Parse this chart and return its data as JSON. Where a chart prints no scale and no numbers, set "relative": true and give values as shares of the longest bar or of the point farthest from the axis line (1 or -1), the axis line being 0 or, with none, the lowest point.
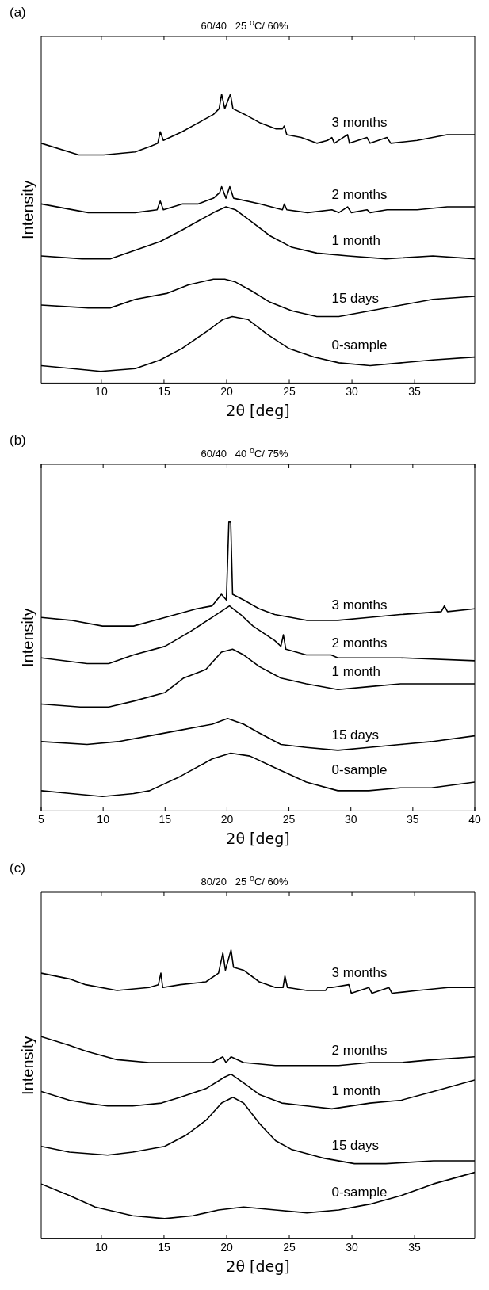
{
  "chart_data": [
    {
      "type": "line",
      "title": "60/40   25 $^{o}$C/ 60%",
      "xlabel": "2θ [deg]",
      "ylabel": "Intensity",
      "annotations": [
        "(a)"
      ],
      "relative": true,
      "legend": false,
      "xlim": [
        5.2,
        39.8
      ],
      "xticks": [
        10,
        15,
        20,
        25,
        30,
        35
      ],
      "series": [
        {
          "name": "3 months",
          "color": "#000000",
          "x": [
            5.2,
            8.2,
            10.2,
            12.7,
            13.95,
            14.5,
            14.7,
            14.95,
            16.45,
            17.7,
            18.95,
            19.4,
            19.6,
            19.85,
            20.3,
            20.5,
            21.45,
            22.7,
            23.95,
            24.45,
            24.6,
            24.8,
            25.95,
            27.2,
            28.05,
            28.4,
            28.6,
            29.65,
            29.8,
            31.2,
            31.45,
            32.8,
            33.1,
            35.2,
            37.6,
            39.8
          ],
          "values": [
            0.83,
            0.79,
            0.79,
            0.8,
            0.82,
            0.83,
            0.87,
            0.84,
            0.87,
            0.9,
            0.93,
            0.95,
            1.0,
            0.95,
            1.0,
            0.95,
            0.93,
            0.9,
            0.88,
            0.88,
            0.89,
            0.86,
            0.85,
            0.83,
            0.84,
            0.85,
            0.83,
            0.86,
            0.83,
            0.85,
            0.83,
            0.85,
            0.83,
            0.84,
            0.86,
            0.86
          ]
        },
        {
          "name": "2 months",
          "color": "#000000",
          "x": [
            5.2,
            8.95,
            12.7,
            14.45,
            14.7,
            14.95,
            16.45,
            17.7,
            18.95,
            19.45,
            19.6,
            19.95,
            20.25,
            20.55,
            22.7,
            24.45,
            24.6,
            24.8,
            26.45,
            28.4,
            28.95,
            29.65,
            29.95,
            31.2,
            31.45,
            32.8,
            35.2,
            37.6,
            39.8
          ],
          "values": [
            0.62,
            0.59,
            0.59,
            0.6,
            0.63,
            0.6,
            0.62,
            0.62,
            0.64,
            0.66,
            0.68,
            0.64,
            0.68,
            0.64,
            0.62,
            0.6,
            0.62,
            0.6,
            0.59,
            0.6,
            0.59,
            0.61,
            0.59,
            0.6,
            0.59,
            0.6,
            0.6,
            0.61,
            0.61
          ]
        },
        {
          "name": "1 month",
          "color": "#000000",
          "x": [
            5.2,
            8.45,
            10.7,
            12.7,
            14.7,
            16.45,
            17.7,
            18.95,
            19.95,
            20.7,
            21.95,
            23.45,
            25.2,
            27.2,
            29.7,
            32.7,
            36.45,
            39.8
          ],
          "values": [
            0.44,
            0.43,
            0.43,
            0.46,
            0.49,
            0.53,
            0.56,
            0.59,
            0.61,
            0.6,
            0.56,
            0.51,
            0.47,
            0.45,
            0.44,
            0.43,
            0.44,
            0.43
          ]
        },
        {
          "name": "15 days",
          "color": "#000000",
          "x": [
            5.2,
            8.95,
            10.7,
            12.7,
            15.2,
            16.95,
            18.95,
            19.85,
            20.7,
            21.95,
            23.45,
            25.2,
            27.2,
            28.95,
            31.45,
            33.95,
            36.45,
            39.8
          ],
          "values": [
            0.27,
            0.26,
            0.26,
            0.29,
            0.31,
            0.34,
            0.36,
            0.36,
            0.35,
            0.32,
            0.28,
            0.25,
            0.23,
            0.23,
            0.25,
            0.27,
            0.29,
            0.3
          ]
        },
        {
          "name": "0-sample",
          "color": "#000000",
          "x": [
            5.2,
            7.7,
            9.95,
            12.7,
            14.7,
            16.45,
            18.45,
            19.7,
            20.45,
            21.7,
            23.2,
            24.95,
            26.95,
            28.95,
            31.45,
            33.95,
            36.45,
            39.8
          ],
          "values": [
            0.06,
            0.05,
            0.04,
            0.05,
            0.08,
            0.12,
            0.18,
            0.22,
            0.23,
            0.22,
            0.17,
            0.12,
            0.09,
            0.07,
            0.06,
            0.07,
            0.08,
            0.09
          ]
        }
      ]
    },
    {
      "type": "line",
      "title": "60/40   40 $^{o}$C/ 75%",
      "xlabel": "2θ [deg]",
      "ylabel": "Intensity",
      "annotations": [
        "(b)"
      ],
      "relative": true,
      "legend": false,
      "xlim": [
        5,
        40
      ],
      "xticks": [
        5,
        10,
        15,
        20,
        25,
        30,
        35,
        40
      ],
      "series": [
        {
          "name": "3 months",
          "color": "#000000",
          "x": [
            5,
            7.4,
            9.95,
            12.45,
            15,
            17.55,
            18.8,
            19.55,
            19.95,
            20.15,
            20.3,
            20.45,
            21.35,
            22.6,
            23.85,
            26.4,
            28.95,
            31.45,
            34,
            37.3,
            37.55,
            37.8,
            40
          ],
          "values": [
            0.67,
            0.66,
            0.64,
            0.64,
            0.67,
            0.7,
            0.71,
            0.75,
            0.73,
            1.0,
            1.0,
            0.75,
            0.73,
            0.7,
            0.68,
            0.66,
            0.66,
            0.67,
            0.68,
            0.69,
            0.71,
            0.69,
            0.7
          ]
        },
        {
          "name": "2 months",
          "color": "#000000",
          "x": [
            5,
            8.7,
            10.45,
            12.45,
            15,
            17,
            18.8,
            20.2,
            21.1,
            22.1,
            23.85,
            24.35,
            24.55,
            24.75,
            26.4,
            28.4,
            28.95,
            34,
            40
          ],
          "values": [
            0.53,
            0.51,
            0.51,
            0.54,
            0.57,
            0.62,
            0.67,
            0.71,
            0.68,
            0.64,
            0.59,
            0.57,
            0.61,
            0.56,
            0.54,
            0.54,
            0.53,
            0.53,
            0.52
          ]
        },
        {
          "name": "1 month",
          "color": "#000000",
          "x": [
            5,
            8.15,
            10.45,
            12.45,
            15,
            16.5,
            18.3,
            19.55,
            20.45,
            21.35,
            22.6,
            24.35,
            26.4,
            28.95,
            31.45,
            34,
            40
          ],
          "values": [
            0.37,
            0.36,
            0.36,
            0.38,
            0.41,
            0.46,
            0.49,
            0.55,
            0.56,
            0.54,
            0.5,
            0.46,
            0.44,
            0.42,
            0.43,
            0.44,
            0.44
          ]
        },
        {
          "name": "15 days",
          "color": "#000000",
          "x": [
            5,
            8.7,
            11.2,
            13.75,
            16.25,
            17.5,
            18.8,
            20.05,
            21.35,
            22.6,
            24.35,
            26.4,
            28.95,
            31.45,
            34,
            36.5,
            40
          ],
          "values": [
            0.24,
            0.23,
            0.24,
            0.26,
            0.28,
            0.29,
            0.3,
            0.32,
            0.3,
            0.27,
            0.23,
            0.22,
            0.21,
            0.22,
            0.23,
            0.24,
            0.26
          ]
        },
        {
          "name": "0-sample",
          "color": "#000000",
          "x": [
            5,
            7.4,
            9.95,
            12.45,
            13.75,
            16.25,
            18.8,
            20.3,
            21.85,
            23.85,
            26.4,
            28.95,
            31.45,
            34,
            36.5,
            40
          ],
          "values": [
            0.07,
            0.06,
            0.05,
            0.06,
            0.07,
            0.12,
            0.18,
            0.2,
            0.19,
            0.15,
            0.1,
            0.07,
            0.07,
            0.08,
            0.08,
            0.1
          ]
        }
      ]
    },
    {
      "type": "line",
      "title": "80/20   25 $^{o}$C/ 60%",
      "xlabel": "2θ [deg]",
      "ylabel": "Intensity",
      "annotations": [
        "(c)"
      ],
      "relative": true,
      "legend": false,
      "xlim": [
        5.2,
        39.8
      ],
      "xticks": [
        10,
        15,
        20,
        25,
        30,
        35
      ],
      "series": [
        {
          "name": "3 months",
          "color": "#000000",
          "x": [
            5.2,
            7.45,
            8.75,
            11.25,
            13.8,
            14.55,
            14.75,
            14.9,
            16.3,
            18.35,
            19.35,
            19.7,
            19.9,
            20.35,
            20.55,
            21.35,
            22.6,
            23.9,
            24.5,
            24.65,
            24.85,
            26.4,
            27.9,
            28.05,
            28.4,
            29.75,
            29.95,
            31.35,
            31.6,
            32.95,
            33.2,
            35.25,
            37.65,
            39.8
          ],
          "values": [
            0.92,
            0.9,
            0.88,
            0.86,
            0.87,
            0.88,
            0.92,
            0.87,
            0.88,
            0.89,
            0.92,
            0.99,
            0.93,
            1.0,
            0.94,
            0.93,
            0.89,
            0.87,
            0.87,
            0.91,
            0.87,
            0.86,
            0.86,
            0.87,
            0.87,
            0.88,
            0.85,
            0.87,
            0.85,
            0.87,
            0.85,
            0.86,
            0.87,
            0.87
          ]
        },
        {
          "name": "2 months",
          "color": "#000000",
          "x": [
            5.2,
            7.45,
            8.75,
            11.25,
            13.8,
            16.3,
            18.85,
            19.7,
            19.95,
            20.35,
            21.35,
            23.9,
            26.4,
            28.95,
            31.45,
            33.95,
            36.5,
            39.8
          ],
          "values": [
            0.7,
            0.67,
            0.65,
            0.62,
            0.61,
            0.61,
            0.61,
            0.63,
            0.61,
            0.63,
            0.61,
            0.6,
            0.6,
            0.6,
            0.61,
            0.61,
            0.62,
            0.63
          ]
        },
        {
          "name": "1 month",
          "color": "#000000",
          "x": [
            5.2,
            7.45,
            8.75,
            10.5,
            12.5,
            14.8,
            16.3,
            18.35,
            19.85,
            20.35,
            21.35,
            22.6,
            24.4,
            26.4,
            28.4,
            31.45,
            33.95,
            36.5,
            39.8
          ],
          "values": [
            0.51,
            0.48,
            0.47,
            0.46,
            0.46,
            0.47,
            0.49,
            0.52,
            0.56,
            0.57,
            0.54,
            0.5,
            0.47,
            0.46,
            0.45,
            0.47,
            0.48,
            0.51,
            0.55
          ]
        },
        {
          "name": "15 days",
          "color": "#000000",
          "x": [
            5.2,
            7.45,
            10.5,
            12.5,
            15.05,
            16.8,
            18.35,
            19.6,
            20.5,
            21.35,
            22.6,
            23.9,
            25.15,
            27.65,
            30.2,
            32.7,
            36.5,
            39.8
          ],
          "values": [
            0.32,
            0.3,
            0.29,
            0.3,
            0.32,
            0.36,
            0.41,
            0.47,
            0.49,
            0.47,
            0.4,
            0.34,
            0.31,
            0.28,
            0.26,
            0.26,
            0.27,
            0.27
          ]
        },
        {
          "name": "0-sample",
          "color": "#000000",
          "x": [
            5.2,
            7.45,
            9.5,
            12.5,
            15.05,
            17.3,
            19.35,
            21.35,
            23.9,
            26.4,
            28.95,
            31.45,
            33.95,
            36.5,
            39.8
          ],
          "values": [
            0.19,
            0.15,
            0.11,
            0.08,
            0.07,
            0.08,
            0.1,
            0.11,
            0.1,
            0.09,
            0.1,
            0.12,
            0.15,
            0.19,
            0.23
          ]
        }
      ]
    }
  ]
}
